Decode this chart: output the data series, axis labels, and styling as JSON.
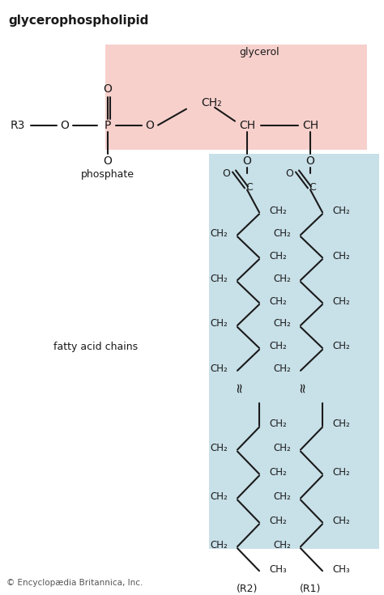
{
  "title": "glycerophospholipid",
  "bg_color": "#ffffff",
  "pink_bg": "#f7d0cc",
  "blue_bg": "#c8e0e8",
  "phosphate_label": "phosphate",
  "glycerol_label": "glycerol",
  "fatty_acid_label": "fatty acid chains",
  "copyright": "© Encyclopædia Britannica, Inc.",
  "r1_label": "(R1)",
  "r2_label": "(R2)",
  "font_color": "#1a1a1a",
  "bond_color": "#1a1a1a"
}
